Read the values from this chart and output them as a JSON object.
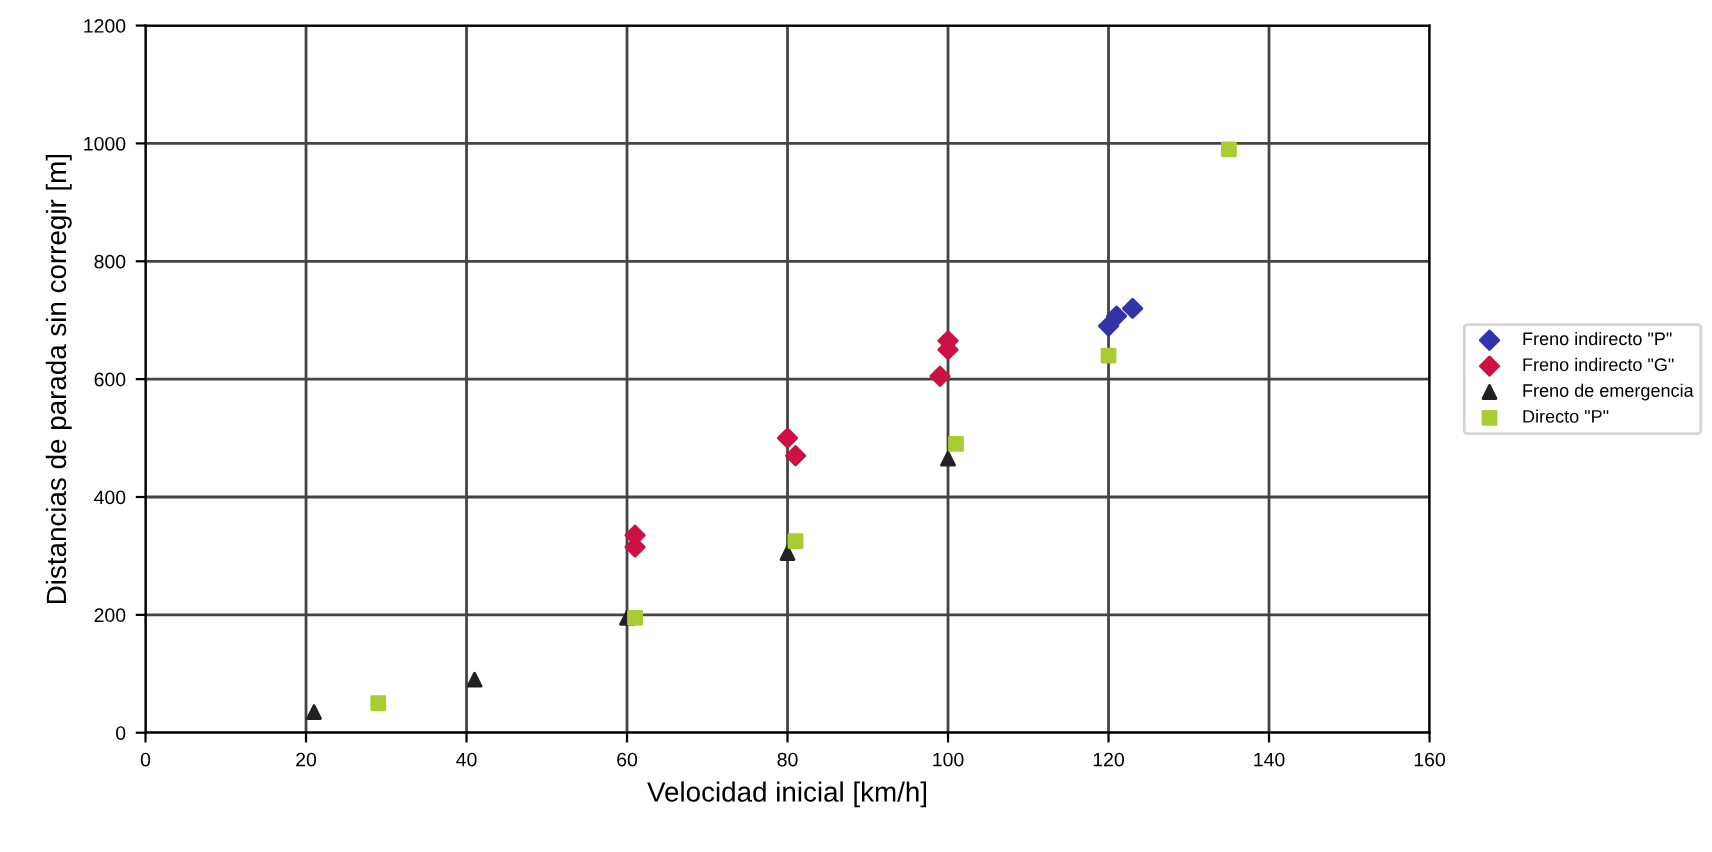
{
  "chart_data": {
    "type": "scatter",
    "xlabel": "Velocidad inicial [km/h]",
    "ylabel": "Distancias de parada sin corregir [m]",
    "xlim": [
      0,
      160
    ],
    "xticks": [
      0,
      20,
      40,
      60,
      80,
      100,
      120,
      140,
      160
    ],
    "ylim": [
      0,
      1200
    ],
    "yticks": [
      0,
      200,
      400,
      600,
      800,
      1000,
      1200
    ],
    "grid": true,
    "legend": "right",
    "series": [
      {
        "name": "Freno indirecto \"P\"",
        "color": "#3333aa",
        "marker": "diamond",
        "x": [
          120,
          121,
          123
        ],
        "values": [
          690,
          707,
          720
        ]
      },
      {
        "name": "Freno indirecto \"G\"",
        "color": "#cc1144",
        "marker": "diamond",
        "x": [
          61,
          61,
          80,
          81,
          99,
          100,
          100
        ],
        "values": [
          315,
          335,
          500,
          470,
          605,
          650,
          665
        ]
      },
      {
        "name": "Freno de emergencia",
        "color": "#222222",
        "marker": "triangle",
        "x": [
          21,
          41,
          60,
          80,
          100
        ],
        "values": [
          35,
          90,
          195,
          305,
          465
        ]
      },
      {
        "name": "Directo \"P\"",
        "color": "#aacc33",
        "marker": "square",
        "x": [
          29,
          61,
          81,
          101,
          120,
          135
        ],
        "values": [
          50,
          195,
          325,
          490,
          640,
          990
        ]
      }
    ]
  }
}
